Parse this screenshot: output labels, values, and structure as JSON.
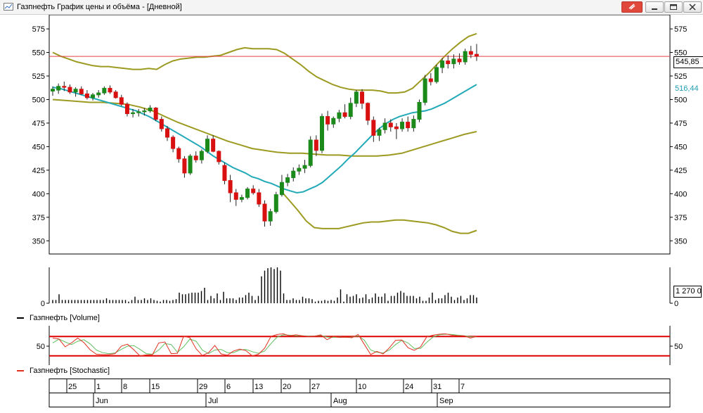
{
  "window": {
    "title": "Газпнефть График цены и объёма - [Дневной]",
    "icons": [
      "window-icon",
      "attach-icon",
      "minimize-icon",
      "restore-icon",
      "close-icon"
    ],
    "accent_color": "#e0483c"
  },
  "badges": {
    "price_last": "545,85",
    "sma_last": "516,44",
    "volume_last": "1 270 0"
  },
  "legends": {
    "volume": "Газпнефть [Volume]",
    "stochastic": "Газпнефть [Stochastic]"
  },
  "time_axis": {
    "days": [
      "25",
      "1",
      "8",
      "15",
      "29",
      "6",
      "13",
      "20",
      "27",
      "10",
      "24",
      "31",
      "7"
    ],
    "months": [
      "Jun",
      "Jul",
      "Aug",
      "Sep"
    ]
  },
  "colors": {
    "up_candle": "#1b8a1b",
    "down_candle": "#d81010",
    "bollinger": "#9c9a20",
    "sma": "#22aab8",
    "price_line": "#e04040",
    "stoch_k": "#e03020",
    "stoch_d": "#60c060",
    "stoch_levels": "#dd0000"
  },
  "chart_data": [
    {
      "type": "candlestick",
      "y_ticks": [
        350,
        375,
        400,
        425,
        450,
        475,
        500,
        525,
        550,
        575
      ],
      "ylim": [
        336,
        590
      ],
      "horizontal_line": 545.85,
      "candles": [
        [
          509,
          514,
          504,
          511
        ],
        [
          510,
          517,
          506,
          514
        ],
        [
          514,
          519,
          509,
          513
        ],
        [
          513,
          516,
          506,
          508
        ],
        [
          508,
          513,
          503,
          511
        ],
        [
          511,
          514,
          505,
          506
        ],
        [
          506,
          510,
          500,
          502
        ],
        [
          502,
          507,
          499,
          505
        ],
        [
          505,
          510,
          502,
          507
        ],
        [
          507,
          514,
          505,
          512
        ],
        [
          512,
          515,
          506,
          508
        ],
        [
          508,
          510,
          501,
          502
        ],
        [
          502,
          505,
          493,
          495
        ],
        [
          495,
          497,
          482,
          485
        ],
        [
          485,
          490,
          481,
          486
        ],
        [
          486,
          490,
          482,
          487
        ],
        [
          487,
          491,
          483,
          488
        ],
        [
          488,
          494,
          486,
          491
        ],
        [
          491,
          492,
          477,
          479
        ],
        [
          479,
          482,
          466,
          469
        ],
        [
          469,
          472,
          456,
          460
        ],
        [
          460,
          462,
          444,
          448
        ],
        [
          448,
          450,
          433,
          437
        ],
        [
          437,
          440,
          417,
          422
        ],
        [
          422,
          442,
          420,
          440
        ],
        [
          440,
          445,
          433,
          436
        ],
        [
          436,
          447,
          432,
          445
        ],
        [
          445,
          462,
          443,
          458
        ],
        [
          458,
          462,
          444,
          445
        ],
        [
          445,
          446,
          431,
          434
        ],
        [
          430,
          433,
          410,
          414
        ],
        [
          414,
          420,
          391,
          401
        ],
        [
          401,
          405,
          387,
          394
        ],
        [
          394,
          399,
          391,
          396
        ],
        [
          396,
          407,
          394,
          405
        ],
        [
          405,
          409,
          399,
          401
        ],
        [
          401,
          405,
          386,
          389
        ],
        [
          389,
          393,
          365,
          371
        ],
        [
          371,
          384,
          366,
          381
        ],
        [
          381,
          402,
          379,
          399
        ],
        [
          399,
          420,
          397,
          412
        ],
        [
          412,
          421,
          408,
          417
        ],
        [
          417,
          428,
          413,
          424
        ],
        [
          424,
          431,
          420,
          427
        ],
        [
          427,
          436,
          422,
          430
        ],
        [
          430,
          461,
          428,
          457
        ],
        [
          457,
          462,
          440,
          446
        ],
        [
          446,
          485,
          443,
          482
        ],
        [
          482,
          488,
          467,
          474
        ],
        [
          474,
          482,
          470,
          480
        ],
        [
          480,
          489,
          476,
          486
        ],
        [
          486,
          495,
          480,
          482
        ],
        [
          482,
          502,
          479,
          496
        ],
        [
          496,
          510,
          492,
          508
        ],
        [
          508,
          511,
          490,
          496
        ],
        [
          496,
          497,
          473,
          478
        ],
        [
          478,
          482,
          455,
          462
        ],
        [
          462,
          470,
          456,
          468
        ],
        [
          468,
          480,
          464,
          475
        ],
        [
          475,
          479,
          466,
          471
        ],
        [
          471,
          475,
          458,
          469
        ],
        [
          469,
          480,
          466,
          476
        ],
        [
          476,
          482,
          466,
          470
        ],
        [
          470,
          483,
          466,
          479
        ],
        [
          479,
          500,
          476,
          497
        ],
        [
          497,
          526,
          494,
          522
        ],
        [
          522,
          528,
          515,
          519
        ],
        [
          519,
          537,
          517,
          534
        ],
        [
          534,
          544,
          528,
          541
        ],
        [
          541,
          547,
          533,
          538
        ],
        [
          538,
          548,
          533,
          543
        ],
        [
          543,
          549,
          537,
          540
        ],
        [
          540,
          554,
          537,
          551
        ],
        [
          551,
          557,
          544,
          548
        ],
        [
          548,
          559,
          541,
          546
        ]
      ],
      "sma": [
        513,
        512,
        510,
        508,
        506,
        504,
        502,
        500,
        498,
        496,
        494,
        492,
        490,
        488,
        485,
        482,
        478,
        474,
        470,
        466,
        462,
        458,
        454,
        450,
        445,
        440,
        436,
        432,
        428,
        425,
        422,
        418,
        416,
        413,
        411,
        408,
        405,
        403,
        401,
        402,
        405,
        408,
        412,
        418,
        424,
        430,
        437,
        443,
        450,
        457,
        464,
        470,
        475,
        479,
        482,
        484,
        486,
        487,
        488,
        490,
        493,
        496,
        500,
        504,
        508,
        512,
        516
      ],
      "bollinger_upper": [
        550,
        546,
        543,
        540,
        538,
        536,
        535,
        535,
        534,
        533,
        532,
        532,
        533,
        532,
        537,
        541,
        543,
        544,
        545,
        545,
        546,
        547,
        550,
        553,
        555,
        554,
        554,
        554,
        553,
        549,
        543,
        537,
        530,
        524,
        520,
        516,
        513,
        511,
        510,
        510,
        510,
        509,
        507,
        507,
        508,
        512,
        520,
        528,
        537,
        546,
        554,
        561,
        567,
        570
      ],
      "bollinger_lower": [
        500,
        499,
        498,
        497,
        497,
        496,
        495,
        492,
        488,
        482,
        476,
        471,
        466,
        461,
        456,
        452,
        448,
        446,
        444,
        443,
        443,
        442,
        441,
        441,
        440,
        440,
        440,
        441,
        443,
        447,
        451,
        455,
        459,
        463,
        466
      ],
      "bollinger_lower_2": [
        402,
        392,
        382,
        371,
        364,
        363,
        363,
        363,
        365,
        367,
        369,
        370,
        370,
        371,
        372,
        372,
        371,
        370,
        369,
        367,
        364,
        360,
        358,
        358,
        361
      ]
    },
    {
      "type": "bar",
      "name": "Volume",
      "values": [
        4,
        4,
        11,
        4,
        4,
        4,
        4,
        4,
        4,
        4,
        4,
        4,
        4,
        4,
        4,
        4,
        4,
        6,
        4,
        4,
        4,
        4,
        4,
        4,
        2,
        4,
        8,
        4,
        4,
        6,
        4,
        6,
        4,
        3,
        2,
        4,
        4,
        3,
        4,
        5,
        13,
        11,
        11,
        12,
        13,
        13,
        13,
        15,
        19,
        4,
        9,
        6,
        12,
        4,
        14,
        6,
        6,
        6,
        4,
        7,
        7,
        10,
        13,
        9,
        4,
        9,
        33,
        40,
        43,
        44,
        42,
        44,
        40,
        12,
        4,
        4,
        6,
        4,
        4,
        8,
        6,
        6,
        5,
        2,
        3,
        3,
        4,
        3,
        4,
        3,
        7,
        17,
        2,
        11,
        8,
        9,
        11,
        6,
        7,
        11,
        5,
        7,
        12,
        8,
        8,
        12,
        3,
        9,
        9,
        13,
        15,
        13,
        9,
        9,
        9,
        6,
        8,
        3,
        3,
        7,
        13,
        4,
        6,
        6,
        10,
        13,
        8,
        4,
        7,
        9,
        4,
        6,
        10,
        10,
        7
      ],
      "label_last": "1 270 0"
    },
    {
      "type": "line",
      "name": "Stochastic",
      "y_ticks": [
        50
      ],
      "levels": [
        80,
        20
      ],
      "series": [
        {
          "name": "%K",
          "values": [
            75,
            72,
            48,
            60,
            75,
            61,
            39,
            25,
            24,
            24,
            27,
            50,
            56,
            39,
            20,
            23,
            24,
            60,
            63,
            27,
            28,
            81,
            76,
            42,
            21,
            30,
            52,
            26,
            22,
            35,
            41,
            36,
            20,
            25,
            44,
            80,
            86,
            88,
            82,
            85,
            82,
            80,
            81,
            85,
            70,
            80,
            77,
            78,
            76,
            86,
            55,
            24,
            34,
            26,
            45,
            68,
            69,
            45,
            37,
            48,
            79,
            84,
            87,
            88,
            84,
            82,
            82,
            75,
            80
          ]
        },
        {
          "name": "%D",
          "values": [
            60,
            72,
            63,
            55,
            65,
            70,
            57,
            38,
            30,
            27,
            29,
            40,
            50,
            52,
            40,
            27,
            25,
            38,
            58,
            55,
            31,
            48,
            72,
            65,
            38,
            27,
            38,
            40,
            30,
            30,
            38,
            40,
            33,
            28,
            35,
            58,
            78,
            85,
            84,
            82,
            82,
            81,
            81,
            83,
            78,
            77,
            78,
            77,
            78,
            82,
            68,
            38,
            31,
            29,
            38,
            55,
            68,
            60,
            43,
            43,
            62,
            78,
            85,
            87,
            86,
            84,
            82,
            79,
            79
          ]
        }
      ]
    }
  ]
}
